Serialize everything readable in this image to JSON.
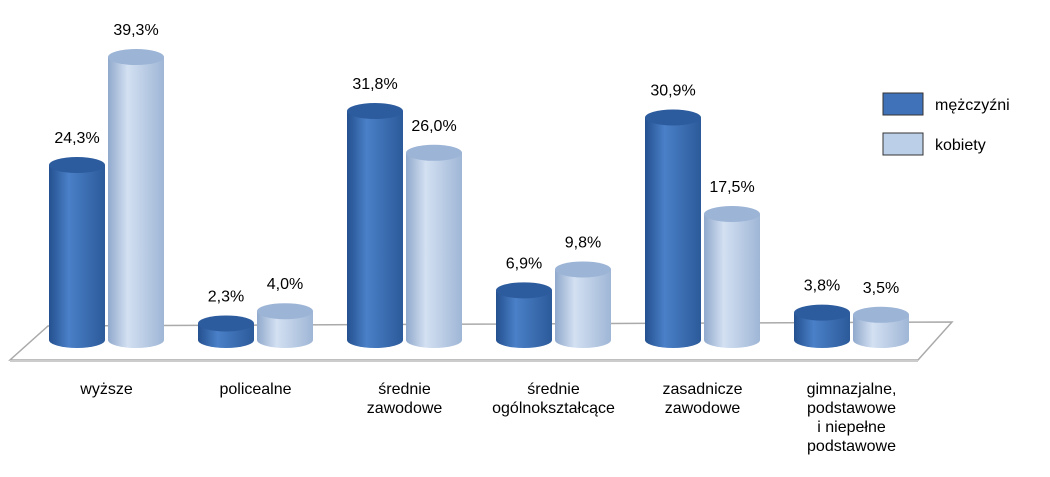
{
  "chart_data": {
    "type": "bar3d",
    "categories": [
      "wyższe",
      "policealne",
      "średnie\nzawodowe",
      "średnie\nogólnokształcące",
      "zasadnicze\nzawodowe",
      "gimnazjalne,\npodstawowe\ni niepełne\npodstawowe"
    ],
    "series": [
      {
        "name": "mężczyźni",
        "color": "#3f72b8",
        "values": [
          24.3,
          2.3,
          31.8,
          6.9,
          30.9,
          3.8
        ],
        "value_labels": [
          "24,3%",
          "2,3%",
          "31,8%",
          "6,9%",
          "30,9%",
          "3,8%"
        ]
      },
      {
        "name": "kobiety",
        "color": "#bccfe8",
        "values": [
          39.3,
          4.0,
          26.0,
          9.8,
          17.5,
          3.5
        ],
        "value_labels": [
          "39,3%",
          "4,0%",
          "26,0%",
          "9,8%",
          "17,5%",
          "3,5%"
        ]
      }
    ],
    "legend": "right"
  }
}
